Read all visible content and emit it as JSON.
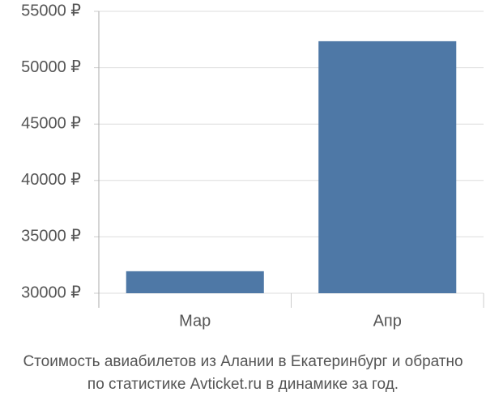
{
  "chart_data": {
    "type": "bar",
    "title": [
      "Стоимость авиабилетов из Алании в Екатеринбург и обратно",
      "по статистике Avticket.ru в динамике за год."
    ],
    "categories": [
      "Мар",
      "Апр"
    ],
    "values": [
      31950,
      52350
    ],
    "color": "#4e78a6",
    "ylim": [
      30000,
      55000
    ],
    "yticks": [
      {
        "value": 30000,
        "label": "30000 ₽"
      },
      {
        "value": 35000,
        "label": "35000 ₽"
      },
      {
        "value": 40000,
        "label": "40000 ₽"
      },
      {
        "value": 45000,
        "label": "45000 ₽"
      },
      {
        "value": 50000,
        "label": "50000 ₽"
      },
      {
        "value": 55000,
        "label": "55000 ₽"
      }
    ],
    "grid": true
  }
}
